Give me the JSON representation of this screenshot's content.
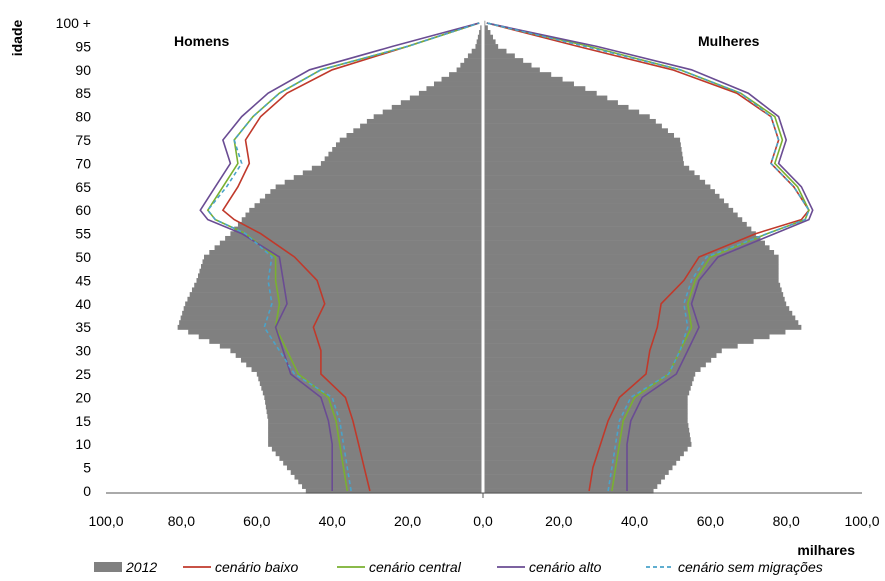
{
  "chart_data": {
    "type": "population-pyramid",
    "ylabel": "idade",
    "xlabel": "milhares",
    "left_label": "Homens",
    "right_label": "Mulheres",
    "xlim": [
      0,
      100
    ],
    "ylim": [
      0,
      100
    ],
    "x_ticks": [
      "100,0",
      "80,0",
      "60,0",
      "40,0",
      "20,0",
      "0,0",
      "20,0",
      "40,0",
      "60,0",
      "80,0",
      "100,0"
    ],
    "y_ticks": [
      "0",
      "5",
      "10",
      "15",
      "20",
      "25",
      "30",
      "35",
      "40",
      "45",
      "50",
      "55",
      "60",
      "65",
      "70",
      "75",
      "80",
      "85",
      "90",
      "95",
      "100 +"
    ],
    "colors": {
      "bars": "#808080",
      "cenario_baixo": "#c0392b",
      "cenario_central": "#7ab030",
      "cenario_alto": "#6a4c93",
      "cenario_sem_migracoes": "#4aa3c9"
    },
    "legend": [
      {
        "key": "bars",
        "label": "2012",
        "style": "box"
      },
      {
        "key": "cenario_baixo",
        "label": "cenário baixo",
        "style": "line"
      },
      {
        "key": "cenario_central",
        "label": "cenário central",
        "style": "line"
      },
      {
        "key": "cenario_alto",
        "label": "cenário alto",
        "style": "line"
      },
      {
        "key": "cenario_sem_migracoes",
        "label": "cenário sem migrações",
        "style": "dashed"
      }
    ],
    "bars_2012": {
      "ages": [
        0,
        5,
        10,
        15,
        20,
        25,
        30,
        35,
        40,
        45,
        50,
        55,
        60,
        65,
        70,
        75,
        80,
        85,
        90,
        95,
        100
      ],
      "homens": [
        47,
        52,
        57,
        57,
        58,
        60,
        67,
        81,
        79,
        76,
        74,
        67,
        62,
        55,
        43,
        38,
        29,
        17,
        7,
        2,
        0.4
      ],
      "mulheres": [
        45,
        50,
        55,
        54,
        54,
        56,
        63,
        84,
        80,
        78,
        78,
        72,
        66,
        60,
        53,
        52,
        44,
        30,
        15,
        4,
        0.6
      ]
    },
    "series": [
      {
        "key": "cenario_baixo",
        "homens": [
          [
            0,
            30
          ],
          [
            5,
            31.5
          ],
          [
            10,
            33
          ],
          [
            15,
            34.5
          ],
          [
            20,
            36.5
          ],
          [
            25,
            43
          ],
          [
            30,
            43
          ],
          [
            35,
            45
          ],
          [
            40,
            42
          ],
          [
            45,
            44
          ],
          [
            50,
            50
          ],
          [
            55,
            59
          ],
          [
            58,
            66
          ],
          [
            60,
            69
          ],
          [
            65,
            65
          ],
          [
            70,
            62
          ],
          [
            75,
            63
          ],
          [
            80,
            59
          ],
          [
            85,
            52
          ],
          [
            90,
            40
          ],
          [
            95,
            20
          ],
          [
            100,
            1
          ]
        ],
        "mulheres": [
          [
            0,
            28
          ],
          [
            5,
            29
          ],
          [
            10,
            31
          ],
          [
            15,
            33
          ],
          [
            20,
            36
          ],
          [
            25,
            43
          ],
          [
            30,
            44
          ],
          [
            35,
            46
          ],
          [
            40,
            47
          ],
          [
            45,
            53
          ],
          [
            50,
            57
          ],
          [
            55,
            72
          ],
          [
            58,
            84
          ],
          [
            60,
            86
          ],
          [
            65,
            82
          ],
          [
            70,
            76
          ],
          [
            75,
            78
          ],
          [
            80,
            76
          ],
          [
            85,
            67
          ],
          [
            90,
            50
          ],
          [
            95,
            25
          ],
          [
            100,
            1
          ]
        ]
      },
      {
        "key": "cenario_central",
        "homens": [
          [
            0,
            36
          ],
          [
            5,
            37
          ],
          [
            10,
            38
          ],
          [
            15,
            39
          ],
          [
            20,
            41
          ],
          [
            25,
            49
          ],
          [
            30,
            52
          ],
          [
            35,
            55
          ],
          [
            40,
            54
          ],
          [
            45,
            55
          ],
          [
            50,
            55
          ],
          [
            55,
            63
          ],
          [
            58,
            71
          ],
          [
            60,
            73
          ],
          [
            65,
            69
          ],
          [
            70,
            65
          ],
          [
            75,
            66
          ],
          [
            80,
            61
          ],
          [
            85,
            54
          ],
          [
            90,
            43
          ],
          [
            95,
            20
          ],
          [
            100,
            1
          ]
        ],
        "mulheres": [
          [
            0,
            34
          ],
          [
            5,
            35
          ],
          [
            10,
            36
          ],
          [
            15,
            37
          ],
          [
            20,
            40
          ],
          [
            25,
            49
          ],
          [
            30,
            52
          ],
          [
            35,
            55
          ],
          [
            40,
            54
          ],
          [
            45,
            56
          ],
          [
            50,
            60
          ],
          [
            55,
            75
          ],
          [
            58,
            85
          ],
          [
            60,
            86
          ],
          [
            65,
            83
          ],
          [
            70,
            77
          ],
          [
            75,
            79
          ],
          [
            80,
            77
          ],
          [
            85,
            68
          ],
          [
            90,
            52
          ],
          [
            95,
            28
          ],
          [
            100,
            1
          ]
        ]
      },
      {
        "key": "cenario_alto",
        "homens": [
          [
            0,
            40
          ],
          [
            5,
            40
          ],
          [
            10,
            40
          ],
          [
            15,
            41
          ],
          [
            20,
            43
          ],
          [
            25,
            51
          ],
          [
            30,
            53
          ],
          [
            35,
            55
          ],
          [
            40,
            52
          ],
          [
            45,
            53
          ],
          [
            50,
            54
          ],
          [
            55,
            64
          ],
          [
            58,
            73
          ],
          [
            60,
            75
          ],
          [
            65,
            71
          ],
          [
            70,
            67
          ],
          [
            75,
            69
          ],
          [
            80,
            64
          ],
          [
            85,
            57
          ],
          [
            90,
            46
          ],
          [
            95,
            24
          ],
          [
            100,
            1
          ]
        ],
        "mulheres": [
          [
            0,
            38
          ],
          [
            5,
            38
          ],
          [
            10,
            38
          ],
          [
            15,
            39
          ],
          [
            20,
            42
          ],
          [
            25,
            51
          ],
          [
            30,
            54
          ],
          [
            35,
            57
          ],
          [
            40,
            55
          ],
          [
            45,
            57
          ],
          [
            50,
            62
          ],
          [
            55,
            77
          ],
          [
            58,
            86
          ],
          [
            60,
            87
          ],
          [
            65,
            84
          ],
          [
            70,
            78
          ],
          [
            75,
            80
          ],
          [
            80,
            78
          ],
          [
            85,
            70
          ],
          [
            90,
            55
          ],
          [
            95,
            30
          ],
          [
            100,
            1
          ]
        ]
      },
      {
        "key": "cenario_sem_migracoes",
        "homens": [
          [
            0,
            35
          ],
          [
            5,
            36
          ],
          [
            10,
            37
          ],
          [
            15,
            38
          ],
          [
            20,
            40
          ],
          [
            25,
            50
          ],
          [
            30,
            54
          ],
          [
            35,
            58
          ],
          [
            40,
            56
          ],
          [
            45,
            57
          ],
          [
            50,
            56
          ],
          [
            55,
            63
          ],
          [
            58,
            71
          ],
          [
            60,
            73
          ],
          [
            65,
            68
          ],
          [
            70,
            64
          ],
          [
            75,
            66
          ],
          [
            80,
            61
          ],
          [
            85,
            54
          ],
          [
            90,
            43
          ],
          [
            95,
            20
          ],
          [
            100,
            1
          ]
        ],
        "mulheres": [
          [
            0,
            33
          ],
          [
            5,
            34
          ],
          [
            10,
            35
          ],
          [
            15,
            36
          ],
          [
            20,
            39
          ],
          [
            25,
            49
          ],
          [
            30,
            52
          ],
          [
            35,
            54
          ],
          [
            40,
            53
          ],
          [
            45,
            55
          ],
          [
            50,
            59
          ],
          [
            55,
            75
          ],
          [
            58,
            85
          ],
          [
            60,
            86
          ],
          [
            65,
            82
          ],
          [
            70,
            76
          ],
          [
            75,
            78
          ],
          [
            80,
            76
          ],
          [
            85,
            68
          ],
          [
            90,
            52
          ],
          [
            95,
            27
          ],
          [
            100,
            1
          ]
        ]
      }
    ]
  }
}
